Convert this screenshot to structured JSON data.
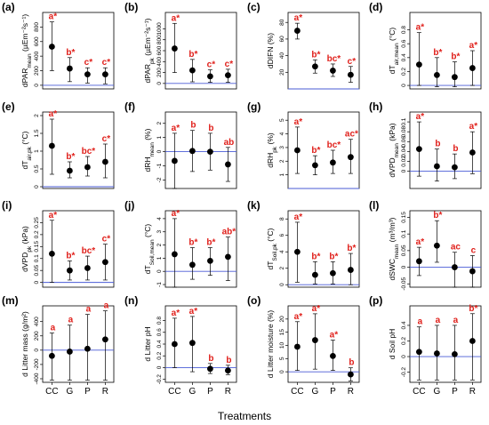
{
  "colors": {
    "significance": "#e0201b",
    "zero_line": "#4a5bd6",
    "points": "#000000"
  },
  "x_title": "Treatments",
  "chart_data": [
    {
      "label": "(a)",
      "type": "scatter",
      "ylabel": "dPAR_mean (µEm⁻²s⁻¹)",
      "ylim": [
        -50,
        1000
      ],
      "ticks": [
        0,
        200,
        400,
        600,
        800
      ],
      "zero": 0,
      "categories": [
        "CC",
        "G",
        "P",
        "R"
      ],
      "values": [
        530,
        230,
        150,
        150
      ],
      "lower": [
        200,
        50,
        30,
        20
      ],
      "upper": [
        870,
        380,
        240,
        240
      ],
      "letters": [
        "a*",
        "b*",
        "c*",
        "c*"
      ]
    },
    {
      "label": "(b)",
      "type": "scatter",
      "ylabel": "dPAR_pk (µEm⁻²s⁻¹)",
      "ylim": [
        -100,
        1300
      ],
      "ticks": [
        0,
        200,
        400,
        600,
        800,
        1000
      ],
      "zero": 0,
      "categories": [
        "CC",
        "G",
        "P",
        "R"
      ],
      "values": [
        640,
        240,
        130,
        150
      ],
      "lower": [
        200,
        30,
        20,
        20
      ],
      "upper": [
        1100,
        440,
        250,
        260
      ],
      "letters": [
        "a*",
        "b*",
        "c*",
        "c*"
      ]
    },
    {
      "label": "(c)",
      "type": "scatter",
      "ylabel": "dDIFN (%)",
      "ylim": [
        0,
        92
      ],
      "ticks": [
        20,
        40,
        60,
        80
      ],
      "zero": 0,
      "categories": [
        "CC",
        "G",
        "P",
        "R"
      ],
      "values": [
        70,
        27,
        22,
        17
      ],
      "lower": [
        60,
        19,
        15,
        8
      ],
      "upper": [
        79,
        35,
        30,
        27
      ],
      "letters": [
        "a*",
        "b*",
        "bc*",
        "c*"
      ]
    },
    {
      "label": "(d)",
      "type": "scatter",
      "ylabel": "dT_air,mean (°C)",
      "ylim": [
        -0.05,
        1.05
      ],
      "ticks": [
        0,
        0.2,
        0.4,
        0.6,
        0.8
      ],
      "zero": 0,
      "categories": [
        "CC",
        "G",
        "P",
        "R"
      ],
      "values": [
        0.3,
        0.15,
        0.12,
        0.25
      ],
      "lower": [
        0,
        -0.02,
        -0.02,
        0
      ],
      "upper": [
        0.76,
        0.4,
        0.34,
        0.5
      ],
      "letters": [
        "a*",
        "b*",
        "b*",
        "a*"
      ]
    },
    {
      "label": "(e)",
      "type": "scatter",
      "ylabel": "dT_air,pk (°C)",
      "ylim": [
        -0.05,
        2.1
      ],
      "ticks": [
        0,
        0.5,
        1.0,
        1.5,
        2.0
      ],
      "zero": 0,
      "categories": [
        "CC",
        "G",
        "P",
        "R"
      ],
      "values": [
        1.15,
        0.45,
        0.55,
        0.7
      ],
      "lower": [
        0.35,
        0.25,
        0.3,
        0.25
      ],
      "upper": [
        1.9,
        0.7,
        0.85,
        1.2
      ],
      "letters": [
        "a*",
        "b*",
        "bc*",
        "c*"
      ]
    },
    {
      "label": "(f)",
      "type": "scatter",
      "ylabel": "dRH_mean (%)",
      "ylim": [
        -2.6,
        2.8
      ],
      "ticks": [
        -2,
        -1,
        0,
        1,
        2
      ],
      "zero": 0,
      "categories": [
        "CC",
        "G",
        "P",
        "R"
      ],
      "values": [
        -0.65,
        0.05,
        0,
        -0.9
      ],
      "lower": [
        -2.6,
        -1.4,
        -1.3,
        -2.1
      ],
      "upper": [
        1.3,
        1.5,
        1.3,
        0.3
      ],
      "letters": [
        "a*",
        "b",
        "b",
        "ab"
      ]
    },
    {
      "label": "(g)",
      "type": "scatter",
      "ylabel": "dRH_pk (%)",
      "ylim": [
        0,
        5.6
      ],
      "ticks": [
        1,
        2,
        3,
        4,
        5
      ],
      "zero": 0,
      "categories": [
        "CC",
        "G",
        "P",
        "R"
      ],
      "values": [
        2.8,
        1.7,
        1.9,
        2.3
      ],
      "lower": [
        1.1,
        1.0,
        1.1,
        1.1
      ],
      "upper": [
        4.5,
        2.4,
        2.8,
        3.6
      ],
      "letters": [
        "a*",
        "b*",
        "bc*",
        "ac*"
      ]
    },
    {
      "label": "(h)",
      "type": "scatter",
      "ylabel": "dVPD_mean (kPa)",
      "ylim": [
        -0.035,
        0.12
      ],
      "ticks": [
        0,
        0.02,
        0.04,
        0.06,
        0.08,
        0.1
      ],
      "zero": 0,
      "categories": [
        "CC",
        "G",
        "P",
        "R"
      ],
      "values": [
        0.045,
        0.01,
        0.008,
        0.038
      ],
      "lower": [
        -0.01,
        -0.02,
        -0.015,
        -0.005
      ],
      "upper": [
        0.1,
        0.045,
        0.035,
        0.08
      ],
      "letters": [
        "a*",
        "b",
        "b",
        "a*"
      ]
    },
    {
      "label": "(i)",
      "type": "scatter",
      "ylabel": "dVPD_pk (kPa)",
      "ylim": [
        -0.02,
        0.3
      ],
      "ticks": [
        0,
        0.05,
        0.1,
        0.15,
        0.2,
        0.25
      ],
      "zero": 0,
      "categories": [
        "CC",
        "G",
        "P",
        "R"
      ],
      "values": [
        0.12,
        0.05,
        0.06,
        0.085
      ],
      "lower": [
        0,
        0.01,
        0.01,
        0.01
      ],
      "upper": [
        0.26,
        0.09,
        0.11,
        0.16
      ],
      "letters": [
        "a*",
        "b*",
        "bc*",
        "c*"
      ]
    },
    {
      "label": "(j)",
      "type": "scatter",
      "ylabel": "dT_Soil,mean (°C)",
      "ylim": [
        -1.2,
        4.6
      ],
      "ticks": [
        -1,
        0,
        1,
        2,
        3,
        4
      ],
      "zero": 0,
      "categories": [
        "CC",
        "G",
        "P",
        "R"
      ],
      "values": [
        1.3,
        0.5,
        0.8,
        1.1
      ],
      "lower": [
        -1.2,
        -0.6,
        -0.3,
        -0.7
      ],
      "upper": [
        4.0,
        1.8,
        1.8,
        2.6
      ],
      "letters": [
        "a*",
        "b*",
        "b*",
        "ab*"
      ]
    },
    {
      "label": "(k)",
      "type": "scatter",
      "ylabel": "dT_Soil,pk (°C)",
      "ylim": [
        -0.3,
        9
      ],
      "ticks": [
        0,
        2,
        4,
        6,
        8
      ],
      "zero": 0,
      "categories": [
        "CC",
        "G",
        "P",
        "R"
      ],
      "values": [
        4.0,
        1.2,
        1.4,
        1.8
      ],
      "lower": [
        0.3,
        0.1,
        0.1,
        0
      ],
      "upper": [
        7.6,
        2.8,
        2.8,
        3.8
      ],
      "letters": [
        "a*",
        "b*",
        "b*",
        "b*"
      ]
    },
    {
      "label": "(l)",
      "type": "scatter",
      "ylabel": "dSWC_mean (m³/m³)",
      "ylim": [
        -0.06,
        0.17
      ],
      "ticks": [
        -0.05,
        0,
        0.05,
        0.1,
        0.15
      ],
      "zero": 0,
      "categories": [
        "CC",
        "G",
        "P",
        "R"
      ],
      "values": [
        0.018,
        0.065,
        0,
        -0.012
      ],
      "lower": [
        -0.025,
        0.015,
        -0.06,
        -0.06
      ],
      "upper": [
        0.06,
        0.14,
        0.045,
        0.035
      ],
      "letters": [
        "a*",
        "b*",
        "ac",
        "c"
      ]
    },
    {
      "label": "(m)",
      "type": "scatter",
      "ylabel": "d Litter mass (g/m²)",
      "ylim": [
        -450,
        620
      ],
      "ticks": [
        -400,
        -200,
        0,
        200,
        400
      ],
      "zero": 0,
      "categories": [
        "CC",
        "G",
        "P",
        "R"
      ],
      "values": [
        -80,
        -20,
        20,
        150
      ],
      "lower": [
        -420,
        -420,
        -420,
        -420
      ],
      "upper": [
        240,
        350,
        500,
        550
      ],
      "letters": [
        "a",
        "a",
        "a",
        "a"
      ]
    },
    {
      "label": "(n)",
      "type": "scatter",
      "ylabel": "d Litter pH",
      "ylim": [
        -0.25,
        1.05
      ],
      "ticks": [
        -0.2,
        0,
        0.2,
        0.4,
        0.6,
        0.8
      ],
      "zero": 0,
      "categories": [
        "CC",
        "G",
        "P",
        "R"
      ],
      "values": [
        0.4,
        0.42,
        -0.02,
        -0.05
      ],
      "lower": [
        0,
        -0.07,
        -0.1,
        -0.12
      ],
      "upper": [
        0.84,
        0.87,
        0.07,
        0.04
      ],
      "letters": [
        "a*",
        "a*",
        "b",
        "b"
      ]
    },
    {
      "label": "(o)",
      "type": "scatter",
      "ylabel": "d Litter moisture (%)",
      "ylim": [
        -4,
        25
      ],
      "ticks": [
        0,
        5,
        10,
        15,
        20
      ],
      "zero": 0,
      "categories": [
        "CC",
        "G",
        "P",
        "R"
      ],
      "values": [
        9.5,
        12,
        6,
        -1
      ],
      "lower": [
        0.5,
        1,
        0.5,
        -3.5
      ],
      "upper": [
        19,
        22,
        12,
        1.5
      ],
      "letters": [
        "a*",
        "a*",
        "a*",
        "b"
      ]
    },
    {
      "label": "(p)",
      "type": "scatter",
      "ylabel": "d Soil pH",
      "ylim": [
        -0.33,
        0.65
      ],
      "ticks": [
        -0.2,
        0,
        0.2,
        0.4
      ],
      "zero": 0,
      "categories": [
        "CC",
        "G",
        "P",
        "R"
      ],
      "values": [
        0.06,
        0.04,
        0.03,
        0.2
      ],
      "lower": [
        -0.3,
        -0.3,
        -0.3,
        -0.3
      ],
      "upper": [
        0.38,
        0.4,
        0.4,
        0.55
      ],
      "letters": [
        "a",
        "a",
        "a",
        "b*"
      ]
    }
  ]
}
